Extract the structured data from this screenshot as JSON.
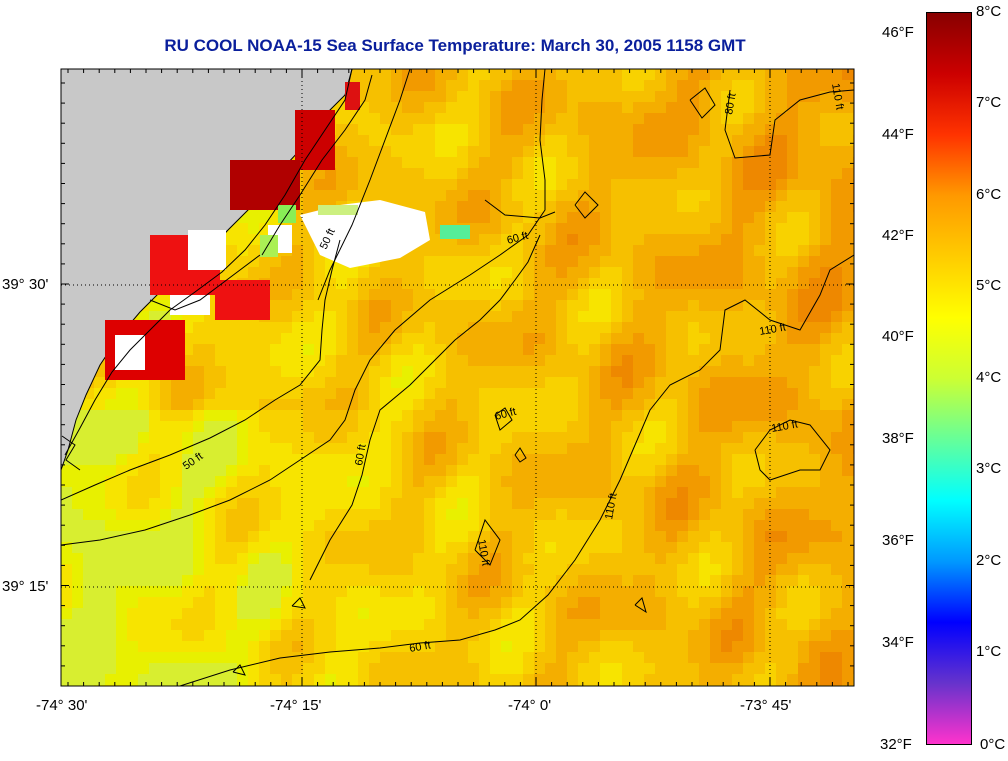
{
  "title": "RU COOL  NOAA-15  Sea Surface Temperature:  March 30, 2005 1158 GMT",
  "map": {
    "lon_ticks": [
      "-74° 30'",
      "-74° 15'",
      "-74° 0'",
      "-73° 45'"
    ],
    "lat_ticks": [
      "39° 30'",
      "39° 15'"
    ],
    "contour_labels": [
      "50 ft",
      "60 ft",
      "80 ft",
      "110 ft"
    ],
    "colors": {
      "land": "#c8c8c8",
      "cloud": "#ffffff",
      "sea_base": "#f7c600"
    }
  },
  "colorbar": {
    "fahrenheit_labels": [
      "46°F",
      "44°F",
      "42°F",
      "40°F",
      "38°F",
      "36°F",
      "34°F",
      "32°F"
    ],
    "celsius_labels": [
      "8°C",
      "7°C",
      "6°C",
      "5°C",
      "4°C",
      "3°C",
      "2°C",
      "1°C",
      "0°C"
    ],
    "colors": [
      "#ff33cc",
      "#6633cc",
      "#0000ff",
      "#0099ff",
      "#00ffff",
      "#66ff99",
      "#ccff33",
      "#ffff00",
      "#ffcc00",
      "#ff9900",
      "#ff3300",
      "#cc0000",
      "#880000"
    ]
  }
}
